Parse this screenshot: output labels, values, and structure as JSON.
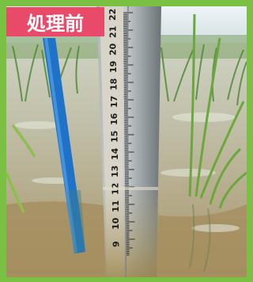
{
  "badge": {
    "label": "処理前"
  },
  "ruler": {
    "labels": [
      "22",
      "21",
      "20",
      "19",
      "18",
      "17",
      "16",
      "15",
      "14",
      "13",
      "12",
      "11",
      "10",
      "9"
    ]
  },
  "colors": {
    "frame_green": "#7ac143",
    "badge_pink": "#e94a6a",
    "rod_blue": "#1e73c8",
    "sky": "#dfe9ee",
    "water": "#c3c2ad",
    "mud": "#9f8a58"
  }
}
